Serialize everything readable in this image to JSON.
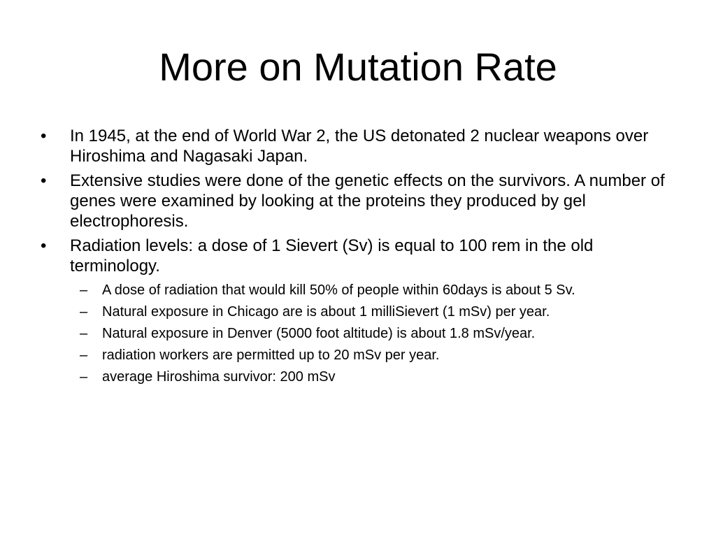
{
  "slide": {
    "title": "More on Mutation Rate",
    "bullet_marker": "•",
    "sub_marker": "–",
    "bullets": [
      {
        "text": "In 1945, at the end of World War 2, the US detonated 2 nuclear weapons over Hiroshima and Nagasaki Japan."
      },
      {
        "text": "Extensive studies were done of the genetic effects on the survivors. A number of genes were examined by looking at the proteins they produced by gel electrophoresis."
      },
      {
        "text": "Radiation levels: a dose of 1 Sievert (Sv) is equal to 100 rem in the old terminology.",
        "sub": [
          "A dose of radiation that would kill 50% of people within 60days is about 5 Sv.",
          "Natural exposure in Chicago are is about 1 milliSievert (1 mSv) per year.",
          "Natural exposure in Denver (5000 foot altitude) is about 1.8 mSv/year.",
          "radiation workers are permitted up to 20 mSv per year.",
          "average Hiroshima survivor: 200 mSv"
        ]
      }
    ]
  }
}
